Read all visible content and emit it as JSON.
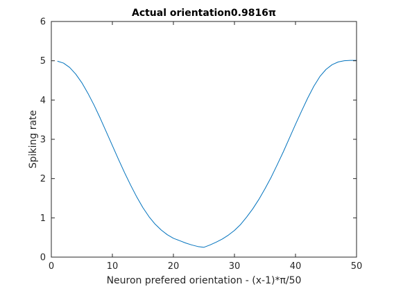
{
  "chart_data": {
    "type": "line",
    "title": "Actual orientation0.9816π",
    "xlabel": "Neuron prefered orientation - (x-1)*π/50",
    "ylabel": "Spiking rate",
    "xlim": [
      0,
      50
    ],
    "ylim": [
      0,
      6
    ],
    "xticks": [
      0,
      10,
      20,
      30,
      40,
      50
    ],
    "yticks": [
      0,
      1,
      2,
      3,
      4,
      5,
      6
    ],
    "xtick_labels": [
      "0",
      "10",
      "20",
      "30",
      "40",
      "50"
    ],
    "ytick_labels": [
      "0",
      "1",
      "2",
      "3",
      "4",
      "5",
      "6"
    ],
    "grid": false,
    "box": true,
    "series_color": "#0072BD",
    "series": [
      {
        "x": [
          1,
          2,
          3,
          4,
          5,
          6,
          7,
          8,
          9,
          10,
          11,
          12,
          13,
          14,
          15,
          16,
          17,
          18,
          19,
          20,
          21,
          22,
          23,
          24,
          25,
          26,
          27,
          28,
          29,
          30,
          31,
          32,
          33,
          34,
          35,
          36,
          37,
          38,
          39,
          40,
          41,
          42,
          43,
          44,
          45,
          46,
          47,
          48,
          49,
          50
        ],
        "values": [
          4.99,
          4.94,
          4.83,
          4.66,
          4.44,
          4.17,
          3.87,
          3.54,
          3.19,
          2.84,
          2.49,
          2.15,
          1.83,
          1.53,
          1.26,
          1.03,
          0.84,
          0.69,
          0.57,
          0.48,
          0.42,
          0.36,
          0.31,
          0.27,
          0.25,
          0.31,
          0.38,
          0.46,
          0.56,
          0.68,
          0.83,
          1.02,
          1.23,
          1.47,
          1.74,
          2.03,
          2.35,
          2.68,
          3.03,
          3.38,
          3.72,
          4.05,
          4.35,
          4.6,
          4.78,
          4.9,
          4.97,
          5.0,
          5.01,
          5.01
        ]
      }
    ]
  }
}
